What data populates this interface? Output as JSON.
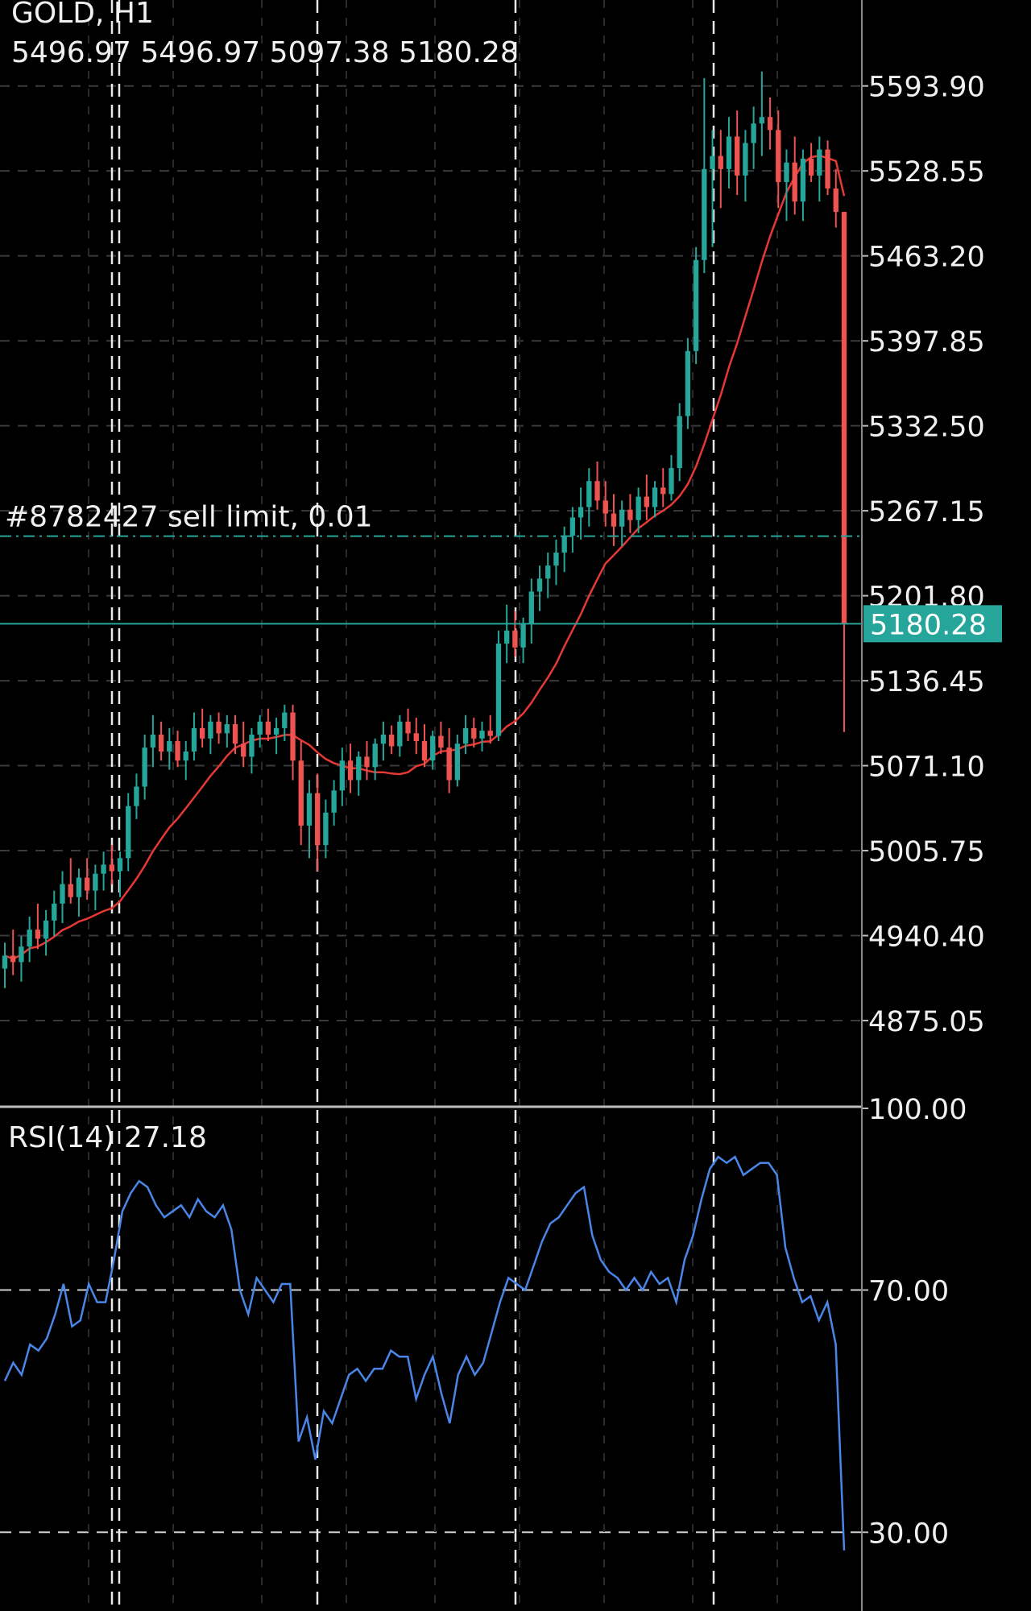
{
  "header": {
    "symbol": "GOLD, H1",
    "ohlc": "5496.97 5496.97 5097.38 5180.28"
  },
  "order": {
    "label": "#8782427 sell limit, 0.01",
    "price": 5247.6
  },
  "current_price": {
    "label": "5180.28",
    "value": 5180.28
  },
  "rsi": {
    "label": "RSI(14) 27.18",
    "levels": [
      30,
      70
    ]
  },
  "colors": {
    "background": "#000000",
    "bull": "#26a69a",
    "bear": "#ef5350",
    "ma": "#e53935",
    "rsi_line": "#4a86e8",
    "price_line": "#26a69a",
    "grid": "#3a3a3a"
  },
  "chart_data": [
    {
      "type": "candlestick",
      "title": "GOLD, H1",
      "y_ticks": [
        "5593.90",
        "5528.55",
        "5463.20",
        "5397.85",
        "5332.50",
        "5267.15",
        "5201.80",
        "5136.45",
        "5071.10",
        "5005.75",
        "4940.40",
        "4875.05"
      ],
      "ylim": [
        4810,
        5660
      ],
      "grid": true,
      "moving_average": true,
      "candles": [
        [
          4915,
          4935,
          4900,
          4925
        ],
        [
          4925,
          4945,
          4910,
          4920
        ],
        [
          4920,
          4940,
          4905,
          4932
        ],
        [
          4932,
          4955,
          4920,
          4945
        ],
        [
          4945,
          4965,
          4930,
          4938
        ],
        [
          4938,
          4960,
          4925,
          4952
        ],
        [
          4952,
          4975,
          4940,
          4965
        ],
        [
          4965,
          4990,
          4950,
          4980
        ],
        [
          4980,
          5000,
          4965,
          4970
        ],
        [
          4970,
          4992,
          4955,
          4985
        ],
        [
          4985,
          5000,
          4968,
          4975
        ],
        [
          4975,
          4995,
          4960,
          4988
        ],
        [
          4988,
          5005,
          4975,
          4995
        ],
        [
          4995,
          5010,
          4980,
          4990
        ],
        [
          4990,
          5005,
          4970,
          5000
        ],
        [
          5000,
          5050,
          4990,
          5040
        ],
        [
          5040,
          5065,
          5030,
          5055
        ],
        [
          5055,
          5095,
          5045,
          5085
        ],
        [
          5085,
          5110,
          5070,
          5095
        ],
        [
          5095,
          5105,
          5075,
          5082
        ],
        [
          5082,
          5100,
          5068,
          5090
        ],
        [
          5090,
          5098,
          5070,
          5075
        ],
        [
          5075,
          5090,
          5060,
          5082
        ],
        [
          5082,
          5112,
          5075,
          5100
        ],
        [
          5100,
          5115,
          5085,
          5092
        ],
        [
          5092,
          5110,
          5080,
          5105
        ],
        [
          5105,
          5112,
          5088,
          5096
        ],
        [
          5096,
          5110,
          5085,
          5103
        ],
        [
          5103,
          5110,
          5080,
          5088
        ],
        [
          5088,
          5105,
          5070,
          5078
        ],
        [
          5078,
          5100,
          5065,
          5095
        ],
        [
          5095,
          5110,
          5085,
          5105
        ],
        [
          5105,
          5115,
          5090,
          5095
        ],
        [
          5095,
          5108,
          5080,
          5100
        ],
        [
          5100,
          5118,
          5090,
          5112
        ],
        [
          5112,
          5118,
          5060,
          5075
        ],
        [
          5075,
          5090,
          5010,
          5025
        ],
        [
          5025,
          5060,
          5000,
          5050
        ],
        [
          5050,
          5065,
          4990,
          5010
        ],
        [
          5010,
          5045,
          5000,
          5035
        ],
        [
          5035,
          5060,
          5025,
          5052
        ],
        [
          5052,
          5085,
          5040,
          5075
        ],
        [
          5075,
          5088,
          5050,
          5060
        ],
        [
          5060,
          5082,
          5048,
          5078
        ],
        [
          5078,
          5090,
          5060,
          5070
        ],
        [
          5070,
          5092,
          5060,
          5088
        ],
        [
          5088,
          5105,
          5075,
          5095
        ],
        [
          5095,
          5102,
          5080,
          5086
        ],
        [
          5086,
          5110,
          5078,
          5105
        ],
        [
          5105,
          5115,
          5090,
          5096
        ],
        [
          5096,
          5108,
          5080,
          5090
        ],
        [
          5090,
          5103,
          5070,
          5075
        ],
        [
          5075,
          5098,
          5068,
          5094
        ],
        [
          5094,
          5105,
          5080,
          5085
        ],
        [
          5085,
          5100,
          5050,
          5060
        ],
        [
          5060,
          5095,
          5055,
          5088
        ],
        [
          5088,
          5110,
          5080,
          5100
        ],
        [
          5100,
          5108,
          5085,
          5092
        ],
        [
          5092,
          5105,
          5082,
          5098
        ],
        [
          5098,
          5110,
          5088,
          5094
        ],
        [
          5094,
          5175,
          5090,
          5165
        ],
        [
          5165,
          5195,
          5150,
          5175
        ],
        [
          5175,
          5190,
          5155,
          5162
        ],
        [
          5162,
          5185,
          5150,
          5180
        ],
        [
          5180,
          5215,
          5165,
          5205
        ],
        [
          5205,
          5225,
          5190,
          5215
        ],
        [
          5215,
          5235,
          5200,
          5225
        ],
        [
          5225,
          5245,
          5210,
          5235
        ],
        [
          5235,
          5255,
          5220,
          5248
        ],
        [
          5248,
          5270,
          5235,
          5262
        ],
        [
          5262,
          5285,
          5245,
          5270
        ],
        [
          5270,
          5300,
          5255,
          5290
        ],
        [
          5290,
          5305,
          5268,
          5275
        ],
        [
          5275,
          5290,
          5255,
          5265
        ],
        [
          5265,
          5280,
          5240,
          5255
        ],
        [
          5255,
          5275,
          5240,
          5268
        ],
        [
          5268,
          5280,
          5250,
          5260
        ],
        [
          5260,
          5285,
          5250,
          5278
        ],
        [
          5278,
          5295,
          5260,
          5270
        ],
        [
          5270,
          5290,
          5262,
          5285
        ],
        [
          5285,
          5300,
          5270,
          5280
        ],
        [
          5280,
          5310,
          5275,
          5300
        ],
        [
          5300,
          5350,
          5290,
          5340
        ],
        [
          5340,
          5400,
          5330,
          5390
        ],
        [
          5390,
          5470,
          5380,
          5460
        ],
        [
          5460,
          5600,
          5450,
          5530
        ],
        [
          5530,
          5560,
          5470,
          5540
        ],
        [
          5540,
          5560,
          5500,
          5530
        ],
        [
          5530,
          5570,
          5515,
          5555
        ],
        [
          5555,
          5575,
          5510,
          5525
        ],
        [
          5525,
          5560,
          5505,
          5550
        ],
        [
          5550,
          5578,
          5530,
          5565
        ],
        [
          5565,
          5605,
          5540,
          5570
        ],
        [
          5570,
          5585,
          5545,
          5560
        ],
        [
          5560,
          5575,
          5500,
          5520
        ],
        [
          5520,
          5545,
          5490,
          5535
        ],
        [
          5535,
          5555,
          5495,
          5505
        ],
        [
          5505,
          5545,
          5490,
          5538
        ],
        [
          5538,
          5550,
          5520,
          5525
        ],
        [
          5525,
          5555,
          5505,
          5545
        ],
        [
          5545,
          5552,
          5510,
          5515
        ],
        [
          5515,
          5530,
          5485,
          5497
        ],
        [
          5497,
          5497,
          5097,
          5180
        ]
      ]
    },
    {
      "type": "line",
      "title": "RSI(14) 27.18",
      "y_ticks": [
        "100.00",
        "70.00",
        "30.00"
      ],
      "ylim": [
        17,
        100
      ],
      "series": [
        {
          "values": [
            55,
            58,
            56,
            61,
            60,
            62,
            66,
            71,
            64,
            65,
            71,
            68,
            68,
            75,
            83,
            86,
            88,
            87,
            84,
            82,
            83,
            84,
            82,
            85,
            83,
            82,
            84,
            80,
            70,
            66,
            72,
            70,
            68,
            71,
            71,
            45,
            49,
            42,
            50,
            48,
            52,
            56,
            57,
            55,
            57,
            57,
            60,
            59,
            59,
            52,
            56,
            59,
            53,
            48,
            56,
            59,
            56,
            58,
            63,
            68,
            72,
            71,
            70,
            74,
            78,
            81,
            82,
            84,
            86,
            87,
            79,
            75,
            73,
            72,
            70,
            72,
            70,
            73,
            71,
            72,
            68,
            75,
            79,
            85,
            90,
            92,
            91,
            92,
            89,
            90,
            91,
            91,
            89,
            77,
            72,
            68,
            69,
            65,
            68,
            61,
            27
          ]
        }
      ]
    }
  ]
}
